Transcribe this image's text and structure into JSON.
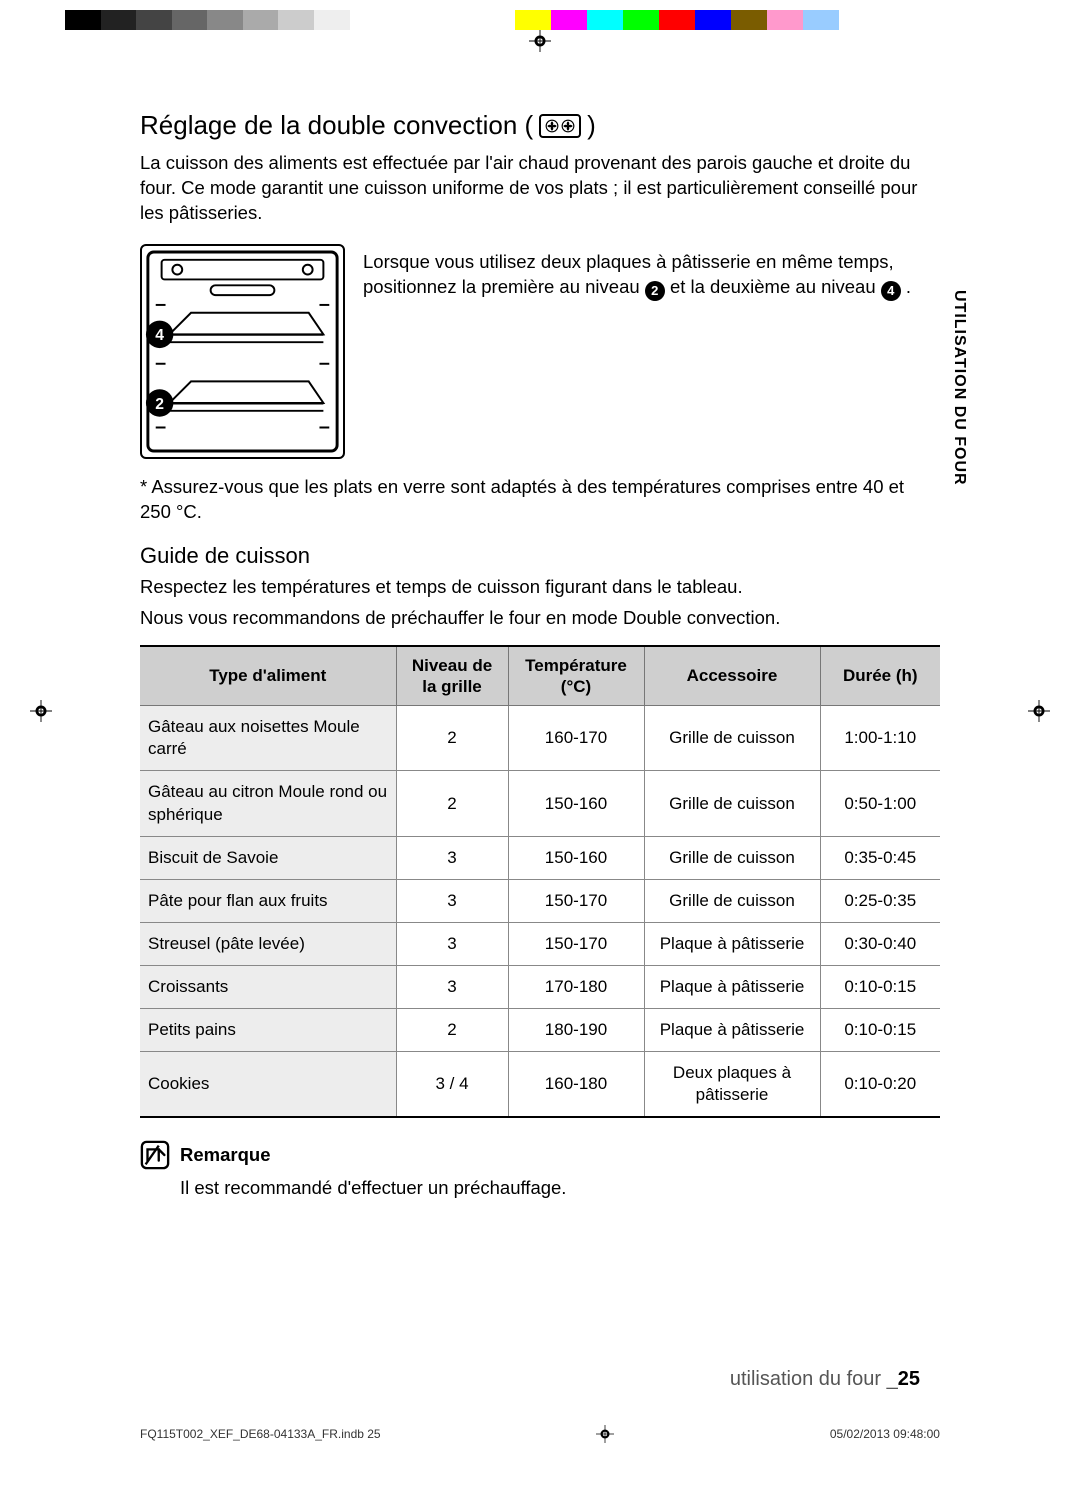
{
  "color_bar": {
    "left": [
      "#000000",
      "#222222",
      "#444444",
      "#666666",
      "#888888",
      "#aaaaaa",
      "#cccccc",
      "#eeeeee",
      "#ffffff"
    ],
    "right": [
      "#ffff00",
      "#ff00ff",
      "#00ffff",
      "#00ff00",
      "#ff0000",
      "#0000ff",
      "#7a5c00",
      "#ff99cc",
      "#99ccff",
      "#ffffff"
    ]
  },
  "side_tab": "UTILISATION DU FOUR",
  "heading": {
    "title_prefix": "Réglage de la double convection (",
    "title_suffix": ")",
    "icon_color": "#000000"
  },
  "intro": "La cuisson des aliments est effectuée par l'air chaud provenant des parois gauche et droite du four. Ce mode garantit une cuisson uniforme de vos plats ; il est particulièrement conseillé pour les pâtisseries.",
  "oven_note": {
    "text_before": "Lorsque vous utilisez deux plaques à pâtisserie en même temps, positionnez la première au niveau ",
    "level_a": "2",
    "text_mid": " et la deuxième au niveau ",
    "level_b": "4",
    "text_after": "."
  },
  "star_note": "*  Assurez-vous que les plats en verre sont adaptés à des températures comprises entre 40 et 250 °C.",
  "guide_title": "Guide de cuisson",
  "guide_intro_1": "Respectez les températures et temps de cuisson figurant dans le tableau.",
  "guide_intro_2": "Nous vous recommandons de préchauffer le four en mode Double convection.",
  "table": {
    "headers": {
      "food": "Type d'aliment",
      "level": "Niveau de la grille",
      "temp": "Température (°C)",
      "acc": "Accessoire",
      "time": "Durée (h)"
    },
    "header_bg": "#cfcfcf",
    "food_bg": "#ededed",
    "border_color": "#888888",
    "rows": [
      {
        "food": "Gâteau aux noisettes Moule carré",
        "level": "2",
        "temp": "160-170",
        "acc": "Grille de cuisson",
        "time": "1:00-1:10"
      },
      {
        "food": "Gâteau au citron Moule rond ou sphérique",
        "level": "2",
        "temp": "150-160",
        "acc": "Grille de cuisson",
        "time": "0:50-1:00"
      },
      {
        "food": "Biscuit de Savoie",
        "level": "3",
        "temp": "150-160",
        "acc": "Grille de cuisson",
        "time": "0:35-0:45"
      },
      {
        "food": "Pâte pour flan aux fruits",
        "level": "3",
        "temp": "150-170",
        "acc": "Grille de cuisson",
        "time": "0:25-0:35"
      },
      {
        "food": "Streusel (pâte levée)",
        "level": "3",
        "temp": "150-170",
        "acc": "Plaque à pâtisserie",
        "time": "0:30-0:40"
      },
      {
        "food": "Croissants",
        "level": "3",
        "temp": "170-180",
        "acc": "Plaque à pâtisserie",
        "time": "0:10-0:15"
      },
      {
        "food": "Petits pains",
        "level": "2",
        "temp": "180-190",
        "acc": "Plaque à pâtisserie",
        "time": "0:10-0:15"
      },
      {
        "food": "Cookies",
        "level": "3 / 4",
        "temp": "160-180",
        "acc": "Deux plaques à pâtisserie",
        "time": "0:10-0:20"
      }
    ]
  },
  "remark": {
    "label": "Remarque",
    "text": "Il est recommandé d'effectuer un préchauffage."
  },
  "footer": {
    "section": "utilisation du four _",
    "page": "25"
  },
  "print_footer": {
    "left": "FQ115T002_XEF_DE68-04133A_FR.indb   25",
    "right": "05/02/2013   09:48:00"
  }
}
